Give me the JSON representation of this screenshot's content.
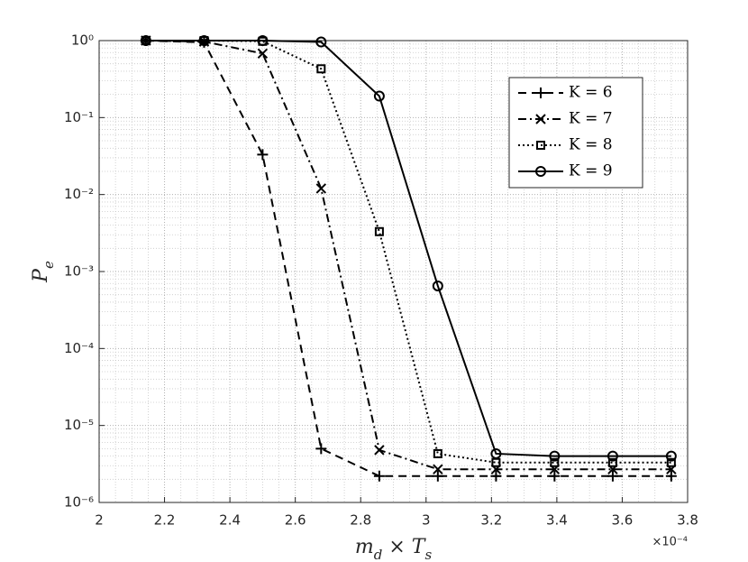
{
  "chart_data": {
    "type": "line",
    "x_label": [
      "m",
      "d",
      " × T",
      "s"
    ],
    "y_label": [
      "P",
      "e"
    ],
    "x_multiplier": "×10⁻⁴",
    "log_y": true,
    "grid": true,
    "minor_grid": true,
    "legend": "upper right",
    "xlim": [
      2,
      3.8
    ],
    "xticks": [
      2,
      2.2,
      2.4,
      2.6,
      2.8,
      3,
      3.2,
      3.4,
      3.6,
      3.8
    ],
    "ylim": [
      1e-06,
      1
    ],
    "yticks": [
      {
        "value": 1e-06,
        "label": "10⁻⁶"
      },
      {
        "value": 1e-05,
        "label": "10⁻⁵"
      },
      {
        "value": 0.0001,
        "label": "10⁻⁴"
      },
      {
        "value": 0.001,
        "label": "10⁻³"
      },
      {
        "value": 0.01,
        "label": "10⁻²"
      },
      {
        "value": 0.1,
        "label": "10⁻¹"
      },
      {
        "value": 1,
        "label": "10⁰"
      }
    ],
    "x": [
      2.143,
      2.321,
      2.5,
      2.679,
      2.857,
      3.036,
      3.214,
      3.393,
      3.571,
      3.75
    ],
    "series": [
      {
        "name": "K = 6",
        "color": "#000000",
        "dash": "9,6",
        "marker": "plus",
        "values": [
          1.0,
          0.95,
          0.033,
          5e-06,
          2.2e-06,
          2.2e-06,
          2.2e-06,
          2.2e-06,
          2.2e-06,
          2.2e-06
        ]
      },
      {
        "name": "K = 7",
        "color": "#000000",
        "dash": "9,4,2,4",
        "marker": "x",
        "values": [
          1.0,
          0.97,
          0.68,
          0.012,
          4.8e-06,
          2.7e-06,
          2.7e-06,
          2.7e-06,
          2.7e-06,
          2.7e-06
        ]
      },
      {
        "name": "K = 8",
        "color": "#000000",
        "dash": "2,3",
        "marker": "square",
        "values": [
          1.0,
          1.0,
          0.98,
          0.43,
          0.0033,
          4.3e-06,
          3.3e-06,
          3.3e-06,
          3.3e-06,
          3.3e-06
        ]
      },
      {
        "name": "K = 9",
        "color": "#000000",
        "dash": "none",
        "marker": "circle",
        "values": [
          1.0,
          1.0,
          1.0,
          0.96,
          0.19,
          0.00065,
          4.3e-06,
          4e-06,
          4e-06,
          4e-06
        ]
      }
    ]
  }
}
